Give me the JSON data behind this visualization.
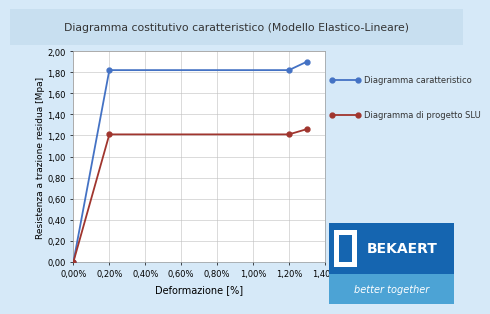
{
  "title": "Diagramma costitutivo caratteristico (Modello Elastico-Lineare)",
  "xlabel": "Deformazione [%]",
  "ylabel": "Resistenza a trazione residua [Mpa]",
  "xlim": [
    0.0,
    0.014
  ],
  "ylim": [
    0.0,
    2.0
  ],
  "xticks": [
    0.0,
    0.002,
    0.004,
    0.006,
    0.008,
    0.01,
    0.012,
    0.014
  ],
  "xtick_labels": [
    "0,00%",
    "0,20%",
    "0,40%",
    "0,60%",
    "0,80%",
    "1,00%",
    "1,20%",
    "1,40%"
  ],
  "yticks": [
    0.0,
    0.2,
    0.4,
    0.6,
    0.8,
    1.0,
    1.2,
    1.4,
    1.6,
    1.8,
    2.0
  ],
  "ytick_labels": [
    "0,00",
    "0,20",
    "0,40",
    "0,60",
    "0,80",
    "1,00",
    "1,20",
    "1,40",
    "1,60",
    "1,80",
    "2,00"
  ],
  "blue_line": {
    "x": [
      0.0,
      0.002,
      0.012,
      0.013
    ],
    "y": [
      0.0,
      1.82,
      1.82,
      1.9
    ],
    "color": "#4472C4",
    "marker": "o",
    "label": "Diagramma caratteristico"
  },
  "red_line": {
    "x": [
      0.0,
      0.002,
      0.012,
      0.013
    ],
    "y": [
      0.0,
      1.21,
      1.21,
      1.26
    ],
    "color": "#A0352E",
    "marker": "o",
    "label": "Diagramma di progetto SLU"
  },
  "fig_bg": "#D6E9F8",
  "plot_bg": "#FFFFFF",
  "title_bg": "#C8DFF0",
  "grid_color": "#BFBFBF",
  "bekaert_blue_dark": "#1565B0",
  "bekaert_blue_light": "#4CA3D5",
  "bekaert_text": "BEKAERT",
  "bekaert_sub": "better together",
  "bekaert_icon_color": "#1565B0"
}
